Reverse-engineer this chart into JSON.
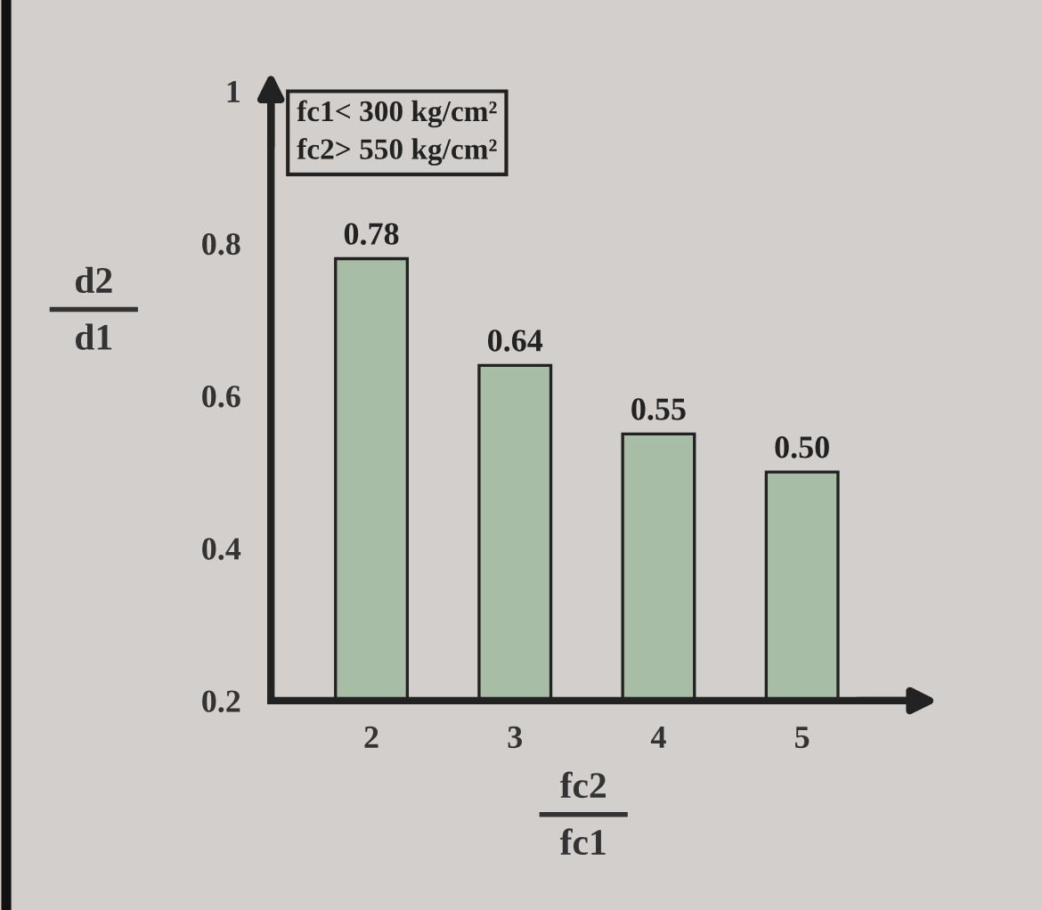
{
  "chart_data": {
    "type": "bar",
    "categories": [
      "2",
      "3",
      "4",
      "5"
    ],
    "values": [
      0.78,
      0.64,
      0.55,
      0.5
    ],
    "value_labels": [
      "0.78",
      "0.64",
      "0.55",
      "0.50"
    ],
    "color": "#a8bda5",
    "xlabel": "fc2\nfc1",
    "ylabel": "d2\nd1",
    "annotations": [
      "fc1< 300 kg/cm²",
      "fc2> 550 kg/cm²"
    ],
    "ylim": [
      0.2,
      1
    ],
    "yticks": [
      0.2,
      0.4,
      0.6,
      0.8,
      1
    ],
    "grid": false
  }
}
